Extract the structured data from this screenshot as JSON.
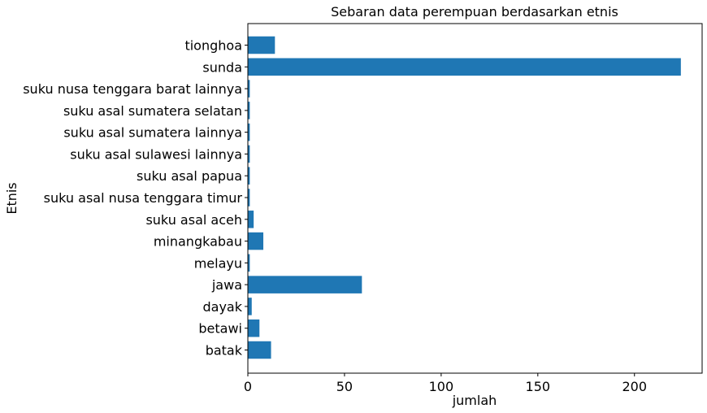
{
  "chart_data": {
    "type": "bar",
    "orientation": "horizontal",
    "title": "Sebaran data perempuan berdasarkan etnis",
    "xlabel": "jumlah",
    "ylabel": "Etnis",
    "categories": [
      "batak",
      "betawi",
      "dayak",
      "jawa",
      "melayu",
      "minangkabau",
      "suku asal aceh",
      "suku asal nusa tenggara timur",
      "suku asal papua",
      "suku asal sulawesi lainnya",
      "suku asal sumatera lainnya",
      "suku asal sumatera selatan",
      "suku nusa tenggara barat lainnya",
      "sunda",
      "tionghoa"
    ],
    "values": [
      12,
      6,
      2,
      59,
      1,
      8,
      3,
      1,
      1,
      1,
      1,
      1,
      1,
      224,
      14
    ],
    "xlim": [
      0,
      235
    ],
    "xticks": [
      0,
      50,
      100,
      150,
      200
    ],
    "bar_color": "#1f77b4",
    "grid": false,
    "legend": false
  }
}
